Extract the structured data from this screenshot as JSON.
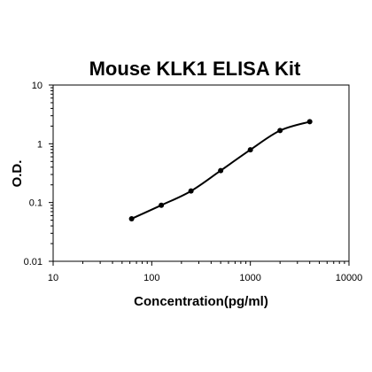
{
  "chart_data": {
    "type": "scatter",
    "title": "Mouse KLK1 ELISA Kit",
    "xlabel": "Concentration(pg/ml)",
    "ylabel": "O.D.",
    "xscale": "log",
    "yscale": "log",
    "xlim": [
      10,
      10000
    ],
    "ylim": [
      0.01,
      10
    ],
    "x_ticks": [
      "10",
      "100",
      "1000",
      "10000"
    ],
    "y_ticks": [
      "10",
      "1",
      "0.1",
      "0.01"
    ],
    "grid": false,
    "legend": "none",
    "fit": "smooth curve",
    "series": [
      {
        "points": [
          {
            "x": 62.5,
            "y": 0.053
          },
          {
            "x": 125,
            "y": 0.09
          },
          {
            "x": 250,
            "y": 0.157
          },
          {
            "x": 500,
            "y": 0.35
          },
          {
            "x": 1000,
            "y": 0.79
          },
          {
            "x": 2000,
            "y": 1.68
          },
          {
            "x": 4000,
            "y": 2.38
          }
        ]
      }
    ],
    "colors": {
      "line": "#000000",
      "points": "#000000",
      "frame": "#000000"
    }
  }
}
